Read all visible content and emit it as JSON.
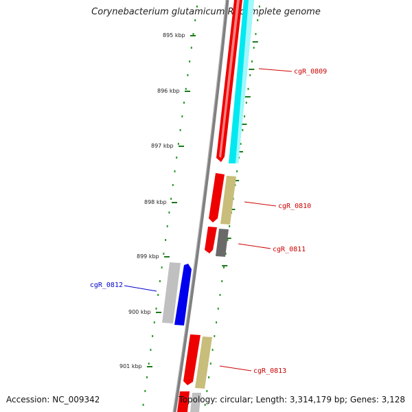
{
  "title": "Corynebacterium glutamicum R, complete genome",
  "accession_text": "Accession: NC_009342",
  "summary_text": "Topology: circular; Length: 3,314,179 bp; Genes: 3,128",
  "colors": {
    "backbone": "#808080",
    "tick_minor": "#2a9a2a",
    "tick_major": "#1a7a1a",
    "forward_label": "#cc0000",
    "reverse_label": "#0000cc",
    "red_feature": "#ee0000",
    "cyan_feature": "#00e8f0",
    "olive_feature": "#c8bd7a",
    "dark_gray_feature": "#6a6a6a",
    "light_gray_feature": "#c0c0c0",
    "blue_feature": "#0000ee"
  },
  "kbp_labels": [
    "895 kbp",
    "896 kbp",
    "897 kbp",
    "898 kbp",
    "899 kbp",
    "900 kbp",
    "901 kbp"
  ],
  "genes": [
    {
      "label": "cgR_0809",
      "strand": "forward"
    },
    {
      "label": "cgR_0810",
      "strand": "forward"
    },
    {
      "label": "cgR_0811",
      "strand": "forward"
    },
    {
      "label": "cgR_0812",
      "strand": "reverse"
    },
    {
      "label": "cgR_0813",
      "strand": "forward"
    }
  ]
}
